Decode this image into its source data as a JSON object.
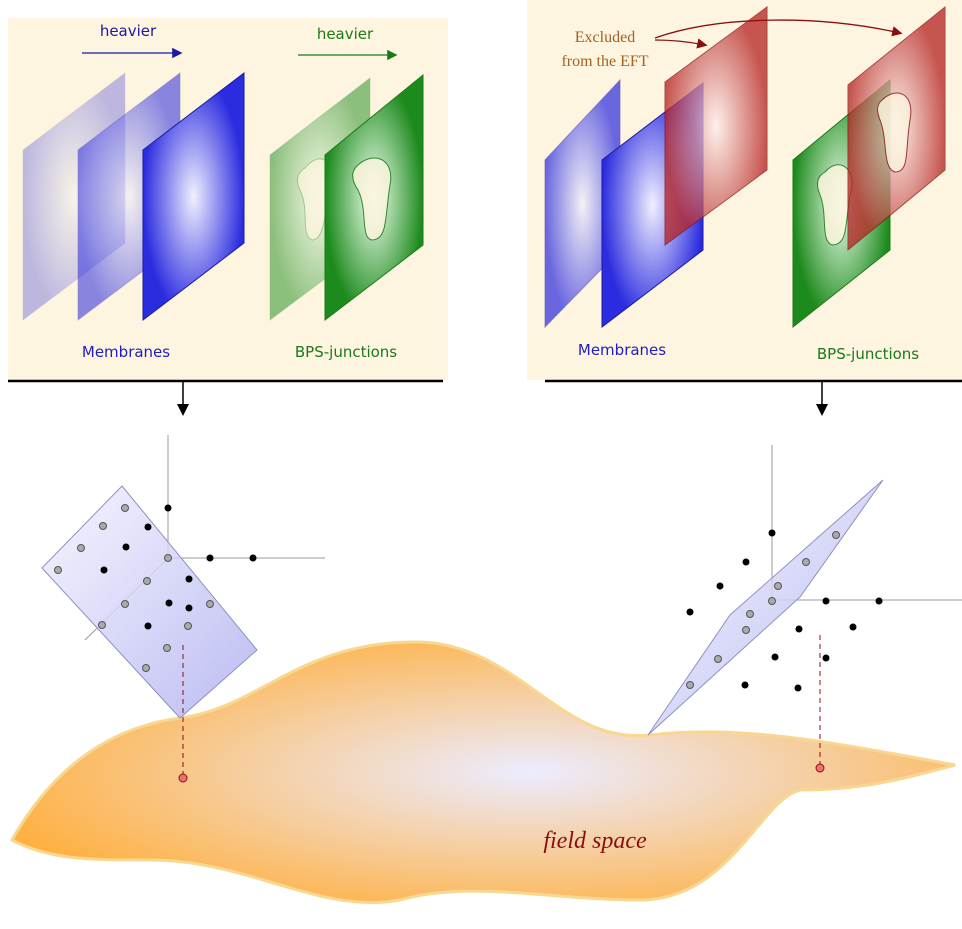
{
  "left_panel": {
    "arrow_labels": [
      "heavier",
      "heavier"
    ],
    "labels": [
      "Membranes",
      "BPS-junctions"
    ]
  },
  "right_panel": {
    "annotation": [
      "Excluded",
      "from the EFT"
    ],
    "labels": [
      "Membranes",
      "BPS-junctions"
    ]
  },
  "field_space": {
    "label": "field space"
  }
}
